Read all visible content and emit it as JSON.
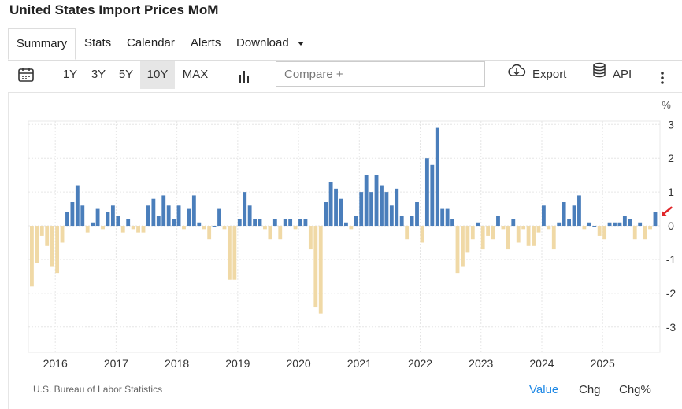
{
  "header": {
    "title": "United States Import Prices MoM"
  },
  "tabs": [
    {
      "label": "Summary"
    },
    {
      "label": "Stats"
    },
    {
      "label": "Calendar"
    },
    {
      "label": "Alerts"
    },
    {
      "label": "Download"
    }
  ],
  "toolbar": {
    "ranges": [
      "1Y",
      "3Y",
      "5Y",
      "10Y",
      "MAX"
    ],
    "active_range": "10Y",
    "compare_placeholder": "Compare +",
    "export_label": "Export",
    "api_label": "API"
  },
  "footer": {
    "source": "U.S. Bureau of Labor Statistics",
    "value_label": "Value",
    "chg_label": "Chg",
    "chgpct_label": "Chg%"
  },
  "colors": {
    "positive": "#4a7ebb",
    "negative": "#f0d9a6",
    "accent": "#1e88e5",
    "marker": "#e0262a"
  },
  "chart_data": {
    "type": "bar",
    "unit": "%",
    "x_tick_labels": [
      "2016",
      "2017",
      "2018",
      "2019",
      "2020",
      "2021",
      "2022",
      "2023",
      "2024",
      "2025"
    ],
    "y_ticks": [
      3,
      2,
      1,
      0,
      -1,
      -2,
      -3
    ],
    "ylim": [
      -3.75,
      3.1
    ],
    "start": "2015-08",
    "grid": true,
    "values": [
      -1.8,
      -1.1,
      -0.3,
      -0.6,
      -1.2,
      -1.4,
      -0.5,
      0.4,
      0.7,
      1.2,
      0.6,
      -0.2,
      0.1,
      0.5,
      -0.1,
      0.4,
      0.6,
      0.3,
      -0.2,
      0.2,
      -0.1,
      -0.2,
      -0.2,
      0.6,
      0.8,
      0.3,
      0.9,
      0.6,
      0.2,
      0.6,
      -0.1,
      0.5,
      0.9,
      0.1,
      -0.1,
      -0.4,
      0.0,
      0.5,
      -0.1,
      -1.6,
      -1.6,
      0.2,
      1.0,
      0.6,
      0.2,
      0.2,
      -0.1,
      -0.4,
      0.2,
      -0.4,
      0.2,
      0.2,
      -0.1,
      0.2,
      0.2,
      -0.7,
      -2.4,
      -2.6,
      0.7,
      1.3,
      1.1,
      0.8,
      0.1,
      -0.1,
      0.3,
      1.0,
      1.5,
      1.0,
      1.5,
      1.2,
      1.0,
      0.6,
      1.1,
      0.3,
      -0.4,
      0.3,
      0.7,
      -0.5,
      2.0,
      1.8,
      2.9,
      0.5,
      0.5,
      0.2,
      -1.4,
      -1.2,
      -0.8,
      -0.4,
      0.1,
      -0.7,
      -0.3,
      -0.4,
      0.3,
      -0.1,
      -0.7,
      0.2,
      -0.5,
      -0.1,
      -0.6,
      -0.6,
      -0.2,
      0.6,
      -0.1,
      -0.7,
      0.1,
      0.7,
      0.2,
      0.6,
      0.9,
      -0.1,
      0.1,
      0.0,
      -0.3,
      -0.4,
      0.1,
      0.1,
      0.1,
      0.3,
      0.2,
      -0.4,
      0.1,
      -0.4,
      -0.1,
      0.4
    ]
  }
}
